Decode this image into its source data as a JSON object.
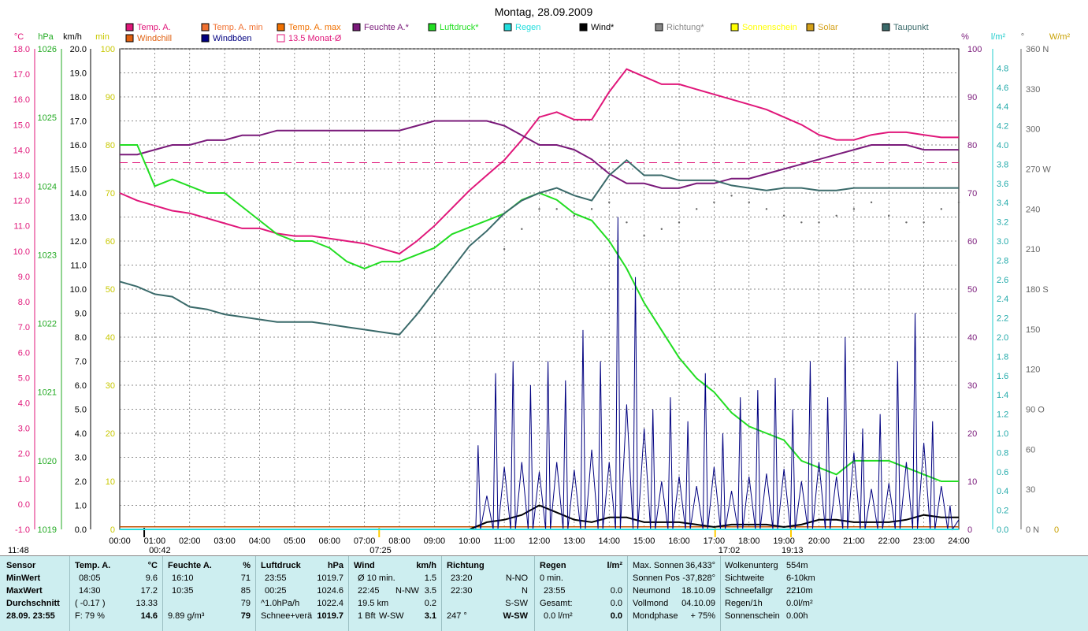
{
  "title": "Montag, 28.09.2009",
  "legend": [
    {
      "label": "Temp. A.",
      "color": "#e0177a",
      "row": 0,
      "col": 0
    },
    {
      "label": "Temp. A. min",
      "color": "#f07030",
      "row": 0,
      "col": 1
    },
    {
      "label": "Temp. A. max",
      "color": "#f07000",
      "row": 0,
      "col": 2
    },
    {
      "label": "Feuchte A.*",
      "color": "#7a1a7a",
      "row": 0,
      "col": 3
    },
    {
      "label": "Luftdruck*",
      "color": "#22dd22",
      "row": 0,
      "col": 4
    },
    {
      "label": "Regen",
      "color": "#22dddd",
      "row": 0,
      "col": 5
    },
    {
      "label": "Wind*",
      "color": "#000000",
      "row": 0,
      "col": 6
    },
    {
      "label": "Richtung*",
      "color": "#888888",
      "row": 0,
      "col": 7
    },
    {
      "label": "Sonnenschein",
      "color": "#ffff00",
      "row": 0,
      "col": 8
    },
    {
      "label": "Solar",
      "color": "#d4a017",
      "row": 0,
      "col": 9
    },
    {
      "label": "Taupunkt",
      "color": "#3a6a6a",
      "row": 0,
      "col": 10
    },
    {
      "label": "Windchill",
      "color": "#e06010",
      "row": 1,
      "col": 0
    },
    {
      "label": "Windböen",
      "color": "#000080",
      "row": 1,
      "col": 1
    },
    {
      "label": "13.5 Monat-Ø",
      "color": "#e0177a",
      "row": 1,
      "col": 2,
      "hollow": true
    }
  ],
  "axes": {
    "left_units": [
      "°C",
      "hPa",
      "km/h",
      "min"
    ],
    "right_units": [
      "%",
      "l/m²",
      "°",
      "W/m²"
    ],
    "temp_ticks": [
      "18.0",
      "17.0",
      "16.0",
      "15.0",
      "14.0",
      "13.0",
      "12.0",
      "11.0",
      "10.0",
      "9.0",
      "8.0",
      "7.0",
      "6.0",
      "5.0",
      "4.0",
      "3.0",
      "2.0",
      "1.0",
      "0.0",
      "-1.0"
    ],
    "hpa_ticks": [
      "1026",
      "1025",
      "1024",
      "1023",
      "1022",
      "1021",
      "1020",
      "1019"
    ],
    "kmh_ticks": [
      "20.0",
      "19.0",
      "18.0",
      "17.0",
      "16.0",
      "15.0",
      "14.0",
      "13.0",
      "12.0",
      "11.0",
      "10.0",
      "9.0",
      "8.0",
      "7.0",
      "6.0",
      "5.0",
      "4.0",
      "3.0",
      "2.0",
      "1.0",
      "0.0"
    ],
    "min_ticks": [
      "100",
      "90",
      "80",
      "70",
      "60",
      "50",
      "40",
      "30",
      "20",
      "10",
      "0"
    ],
    "pct_ticks": [
      "100",
      "90",
      "80",
      "70",
      "60",
      "50",
      "40",
      "30",
      "20",
      "10",
      "0"
    ],
    "rain_ticks": [
      "4.8",
      "4.6",
      "4.4",
      "4.2",
      "4.0",
      "3.8",
      "3.6",
      "3.4",
      "3.2",
      "3.0",
      "2.8",
      "2.6",
      "2.4",
      "2.2",
      "2.0",
      "1.8",
      "1.6",
      "1.4",
      "1.2",
      "1.0",
      "0.8",
      "0.6",
      "0.4",
      "0.2",
      "0.0"
    ],
    "dir_ticks": [
      "360 N",
      "330",
      "300",
      "270 W",
      "240",
      "210",
      "180 S",
      "150",
      "120",
      "90  O",
      "60",
      "30",
      "0   N"
    ],
    "wm2_ticks": [
      "0"
    ],
    "time_ticks": [
      "00:00",
      "01:00",
      "02:00",
      "03:00",
      "04:00",
      "05:00",
      "06:00",
      "07:00",
      "08:00",
      "09:00",
      "10:00",
      "11:00",
      "12:00",
      "13:00",
      "14:00",
      "15:00",
      "16:00",
      "17:00",
      "18:00",
      "19:00",
      "20:00",
      "21:00",
      "22:00",
      "23:00",
      "24:00"
    ]
  },
  "sun_marks": {
    "day_length": "11:48",
    "night_start": "00:42",
    "sunrise": "07:25",
    "sunset": "19:13",
    "moon": "17:02"
  },
  "chart_data": {
    "type": "line",
    "title": "Montag, 28.09.2009",
    "x_hours": [
      0,
      0.5,
      1,
      1.5,
      2,
      2.5,
      3,
      3.5,
      4,
      4.5,
      5,
      5.5,
      6,
      6.5,
      7,
      7.5,
      8,
      8.5,
      9,
      9.5,
      10,
      10.5,
      11,
      11.5,
      12,
      12.5,
      13,
      13.5,
      14,
      14.5,
      15,
      15.5,
      16,
      16.5,
      17,
      17.5,
      18,
      18.5,
      19,
      19.5,
      20,
      20.5,
      21,
      21.5,
      22,
      22.5,
      23,
      23.5,
      24
    ],
    "series": [
      {
        "name": "Temp. A.",
        "unit": "°C",
        "values": [
          12.3,
          12.0,
          11.8,
          11.6,
          11.5,
          11.3,
          11.1,
          10.9,
          10.9,
          10.7,
          10.6,
          10.6,
          10.5,
          10.4,
          10.3,
          10.1,
          9.9,
          10.4,
          11.0,
          11.7,
          12.4,
          13.0,
          13.6,
          14.4,
          15.3,
          15.5,
          15.2,
          15.2,
          16.3,
          17.2,
          16.9,
          16.6,
          16.6,
          16.4,
          16.2,
          16.0,
          15.8,
          15.6,
          15.3,
          15.0,
          14.6,
          14.4,
          14.4,
          14.6,
          14.7,
          14.7,
          14.6,
          14.5,
          14.5
        ]
      },
      {
        "name": "Feuchte A.",
        "unit": "%",
        "values": [
          78,
          78,
          79,
          80,
          80,
          81,
          81,
          82,
          82,
          83,
          83,
          83,
          83,
          83,
          83,
          83,
          83,
          84,
          85,
          85,
          85,
          85,
          84,
          82,
          80,
          80,
          79,
          77,
          74,
          72,
          72,
          71,
          71,
          72,
          72,
          73,
          73,
          74,
          75,
          76,
          77,
          78,
          79,
          80,
          80,
          80,
          79,
          79,
          79
        ]
      },
      {
        "name": "Luftdruck",
        "unit": "hPa",
        "values": [
          1024.6,
          1024.6,
          1024.0,
          1024.1,
          1024.0,
          1023.9,
          1023.9,
          1023.7,
          1023.5,
          1023.3,
          1023.2,
          1023.2,
          1023.1,
          1022.9,
          1022.8,
          1022.9,
          1022.9,
          1023.0,
          1023.1,
          1023.3,
          1023.4,
          1023.5,
          1023.6,
          1023.8,
          1023.9,
          1023.8,
          1023.6,
          1023.5,
          1023.2,
          1022.8,
          1022.3,
          1021.9,
          1021.5,
          1021.2,
          1021.0,
          1020.7,
          1020.5,
          1020.4,
          1020.3,
          1020.0,
          1019.9,
          1019.8,
          1020.0,
          1020.0,
          1020.0,
          1019.9,
          1019.8,
          1019.7,
          1019.7
        ]
      },
      {
        "name": "Taupunkt",
        "unit": "°C",
        "values": [
          8.8,
          8.6,
          8.3,
          8.2,
          7.8,
          7.7,
          7.5,
          7.4,
          7.3,
          7.2,
          7.2,
          7.2,
          7.1,
          7.0,
          6.9,
          6.8,
          6.7,
          7.5,
          8.4,
          9.3,
          10.2,
          10.8,
          11.5,
          12.0,
          12.3,
          12.5,
          12.2,
          12.0,
          13.0,
          13.6,
          13.0,
          13.0,
          12.8,
          12.8,
          12.8,
          12.6,
          12.5,
          12.4,
          12.5,
          12.5,
          12.4,
          12.4,
          12.5,
          12.5,
          12.5,
          12.5,
          12.5,
          12.5,
          12.5
        ]
      },
      {
        "name": "Wind",
        "unit": "km/h",
        "values": [
          0,
          0,
          0,
          0,
          0,
          0,
          0,
          0,
          0,
          0,
          0,
          0,
          0,
          0,
          0,
          0,
          0,
          0,
          0,
          0,
          0,
          0.3,
          0.4,
          0.6,
          1.0,
          0.7,
          0.4,
          0.3,
          0.5,
          0.5,
          0.3,
          0.3,
          0.3,
          0.2,
          0.1,
          0.2,
          0.2,
          0.2,
          0.1,
          0.2,
          0.4,
          0.4,
          0.3,
          0.3,
          0.3,
          0.4,
          0.6,
          0.5,
          0.5
        ]
      },
      {
        "name": "Windböen",
        "unit": "km/h",
        "values": [
          0,
          0,
          0,
          0,
          0,
          0,
          0,
          0,
          0,
          0,
          0,
          0,
          0,
          0,
          0,
          0,
          0,
          0,
          0,
          0,
          0,
          3.5,
          6.5,
          7.0,
          6.0,
          7.0,
          6.2,
          8.3,
          7.0,
          13.0,
          10.5,
          5.0,
          5.5,
          4.5,
          6.5,
          4.0,
          5.5,
          5.8,
          6.3,
          5.0,
          7.0,
          5.5,
          8.0,
          4.2,
          4.8,
          7.0,
          9.0,
          4.5,
          1.0
        ]
      },
      {
        "name": "Richtung",
        "unit": "°",
        "values": [
          null,
          null,
          null,
          null,
          null,
          null,
          null,
          null,
          null,
          null,
          null,
          null,
          null,
          null,
          null,
          null,
          null,
          null,
          null,
          null,
          null,
          null,
          210,
          225,
          240,
          240,
          235,
          240,
          245,
          230,
          220,
          225,
          230,
          240,
          245,
          250,
          245,
          240,
          235,
          230,
          230,
          235,
          240,
          245,
          235,
          230,
          230,
          240,
          245
        ]
      },
      {
        "name": "Regen",
        "unit": "l/m²",
        "values": [
          0,
          0,
          0,
          0,
          0,
          0,
          0,
          0,
          0,
          0,
          0,
          0,
          0,
          0,
          0,
          0,
          0,
          0,
          0,
          0,
          0,
          0,
          0,
          0,
          0,
          0,
          0,
          0,
          0,
          0,
          0,
          0,
          0,
          0,
          0,
          0,
          0,
          0,
          0,
          0,
          0,
          0,
          0,
          0,
          0,
          0,
          0,
          0,
          0
        ]
      }
    ],
    "reference_lines": [
      {
        "name": "13.5 Monat-Ø",
        "unit": "°C",
        "value": 13.5
      },
      {
        "name": "Temp. A. min",
        "unit": "°C",
        "value": -0.9
      }
    ],
    "ranges": {
      "temp": [
        -1,
        18
      ],
      "hpa": [
        1019,
        1026
      ],
      "kmh": [
        0,
        20
      ],
      "pct": [
        0,
        100
      ],
      "rain": [
        0,
        5
      ],
      "dir": [
        0,
        360
      ]
    }
  },
  "table": {
    "sensor": {
      "header": "Sensor",
      "rows": [
        "MinWert",
        "MaxWert",
        "Durchschnitt",
        "28.09. 23:55"
      ]
    },
    "temp": {
      "header": "Temp. A.",
      "unit": "°C",
      "rows": [
        [
          "08:05",
          "9.6"
        ],
        [
          "14:30",
          "17.2"
        ],
        [
          "( -0.17 )",
          "13.33"
        ],
        [
          "F: 79 %",
          "14.6"
        ]
      ]
    },
    "feuchte": {
      "header": "Feuchte A.",
      "unit": "%",
      "rows": [
        [
          "16:10",
          "71"
        ],
        [
          "10:35",
          "85"
        ],
        [
          "",
          "79"
        ],
        [
          "9.89 g/m³",
          "79"
        ]
      ]
    },
    "luftdruck": {
      "header": "Luftdruck",
      "unit": "hPa",
      "rows": [
        [
          "23:55",
          "1019.7"
        ],
        [
          "00:25",
          "1024.6"
        ],
        [
          "^1.0hPa/h",
          "1022.4"
        ],
        [
          "Schnee+verä",
          "1019.7"
        ]
      ]
    },
    "wind": {
      "header": "Wind",
      "unit": "km/h",
      "rows": [
        [
          "Ø 10 min.",
          "",
          "1.5"
        ],
        [
          "22:45",
          "N-NW",
          "3.5"
        ],
        [
          "19.5 km",
          "",
          "0.2"
        ],
        [
          "1 Bft",
          "W-SW",
          "3.1"
        ]
      ]
    },
    "richtung": {
      "header": "Richtung",
      "rows": [
        [
          "23:20",
          "N-NO"
        ],
        [
          "22:30",
          "N"
        ],
        [
          "",
          "S-SW"
        ],
        [
          "247 °",
          "W-SW"
        ]
      ]
    },
    "regen": {
      "header": "Regen",
      "unit": "l/m²",
      "rows": [
        [
          "0 min.",
          ""
        ],
        [
          "23:55",
          "0.0"
        ],
        [
          "Gesamt:",
          "0.0"
        ],
        [
          "0.0 l/m²",
          "0.0"
        ]
      ]
    },
    "astro": [
      [
        "Max. Sonnen",
        "36,433°"
      ],
      [
        "Sonnen Pos",
        "-37,828°"
      ],
      [
        "Neumond",
        "18.10.09"
      ],
      [
        "Vollmond",
        "04.10.09"
      ],
      [
        "Mondphase",
        "+ 75%"
      ]
    ],
    "misc": [
      [
        "Wolkenunterg",
        "554m"
      ],
      [
        "Sichtweite",
        "6-10km"
      ],
      [
        "Schneefallgr",
        "2210m"
      ],
      [
        "Regen/1h",
        "0.0l/m²"
      ],
      [
        "Sonnenschein",
        "0.00h"
      ]
    ]
  }
}
